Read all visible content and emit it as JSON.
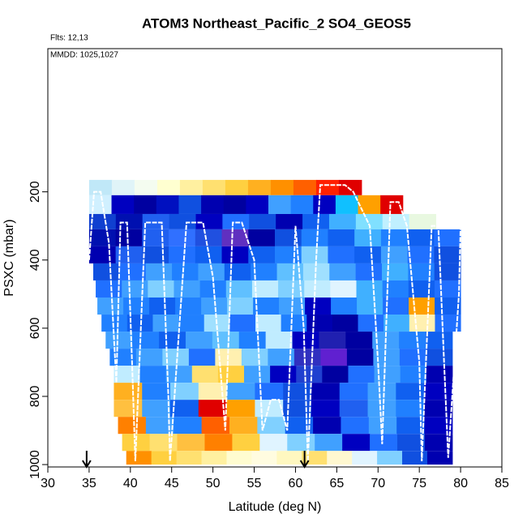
{
  "chart_data": {
    "type": "curtain",
    "title": "ATOM3 Northeast_Pacific_2 SO4_GEOS5",
    "subtitle": "Flts: 12,13",
    "annotation": "MMDD: 1025,1027",
    "x_label": "Latitude (deg N)",
    "y_label": "PSXC (mbar)",
    "xlim": [
      30,
      85
    ],
    "xticks": [
      30,
      35,
      40,
      45,
      50,
      55,
      60,
      65,
      70,
      75,
      80,
      85
    ],
    "ylim": [
      1007,
      -220
    ],
    "yticks": [
      200,
      400,
      600,
      800,
      1000
    ],
    "rows": [
      {
        "p": [
          165,
          210
        ],
        "x": [
          35,
          68
        ],
        "colors": [
          "#c0e8f8",
          "#e0f4f8",
          "#f4fcf0",
          "#ffffd0",
          "#fff0a0",
          "#ffe070",
          "#ffd040",
          "#ffb020",
          "#ff9000",
          "#ff6000",
          "#ff2000",
          "#e00000"
        ]
      },
      {
        "p": [
          210,
          265
        ],
        "x": [
          35,
          73
        ],
        "colors": [
          "#d0f0ff",
          "#0000c0",
          "#0000a0",
          "#0010c0",
          "#1050e0",
          "#0000b0",
          "#0000a0",
          "#0000c0",
          "#40a0ff",
          "#2080ff",
          "#0000c0",
          "#10c0ff",
          "#ffa000",
          "#e00000"
        ]
      },
      {
        "p": [
          265,
          310
        ],
        "x": [
          35,
          77
        ],
        "colors": [
          "#1040d0",
          "#0010b0",
          "#2060f0",
          "#1050e0",
          "#0000c0",
          "#2070ff",
          "#1050e0",
          "#0000b0",
          "#1060f0",
          "#40b0ff",
          "#80e0ff",
          "#c0f0ff",
          "#e8f8e0"
        ]
      },
      {
        "p": [
          310,
          360
        ],
        "x": [
          35,
          80
        ],
        "colors": [
          "#0010b0",
          "#0000a0",
          "#2060f0",
          "#3070ff",
          "#2050e0",
          "#6030c0",
          "#0000a0",
          "#1050e0",
          "#2080ff",
          "#1060f0",
          "#40b0ff",
          "#2080ff",
          "#1060f0",
          "#2070ff"
        ]
      },
      {
        "p": [
          360,
          410
        ],
        "x": [
          35,
          80
        ],
        "colors": [
          "#0000b0",
          "#2060f0",
          "#1050e0",
          "#2070ff",
          "#1060f0",
          "#0000c0",
          "#1060f0",
          "#2080ff",
          "#80d0ff",
          "#2070ff",
          "#1060f0",
          "#40a0ff",
          "#2070ff",
          "#1050e0"
        ]
      },
      {
        "p": [
          410,
          460
        ],
        "x": [
          35.5,
          80
        ],
        "colors": [
          "#1050e0",
          "#2070ff",
          "#40a0ff",
          "#2080ff",
          "#40a0ff",
          "#1060f0",
          "#2080ff",
          "#60c0ff",
          "#a0e0ff",
          "#40a0ff",
          "#2070ff",
          "#40b0ff",
          "#2080ff",
          "#1050e0"
        ]
      },
      {
        "p": [
          460,
          510
        ],
        "x": [
          35.8,
          80
        ],
        "colors": [
          "#2070ff",
          "#40a0ff",
          "#80d0ff",
          "#40a0ff",
          "#2080ff",
          "#60c0ff",
          "#c0ecff",
          "#80d0ff",
          "#c0ecff",
          "#e0f4ff",
          "#40b0ff",
          "#2080ff",
          "#1060f0",
          "#2070ff"
        ]
      },
      {
        "p": [
          510,
          560
        ],
        "x": [
          36,
          80
        ],
        "colors": [
          "#40a0ff",
          "#2080ff",
          "#1060f0",
          "#2080ff",
          "#40a0ff",
          "#80d0ff",
          "#2080ff",
          "#40a0ff",
          "#0000c0",
          "#2080ff",
          "#40b0ff",
          "#2070ff",
          "#ffa000",
          "#1060f0"
        ]
      },
      {
        "p": [
          560,
          610
        ],
        "x": [
          36.5,
          80
        ],
        "colors": [
          "#2080ff",
          "#1060f0",
          "#40a0ff",
          "#2080ff",
          "#a0e0ff",
          "#2070ff",
          "#c0ecff",
          "#2080ff",
          "#0000b0",
          "#0000a0",
          "#2070ff",
          "#40b0ff",
          "#fff0b0",
          "#2070ff"
        ]
      },
      {
        "p": [
          610,
          660
        ],
        "x": [
          37,
          79
        ],
        "colors": [
          "#40a0ff",
          "#2080ff",
          "#1060f0",
          "#40a0ff",
          "#60c0ff",
          "#2080ff",
          "#c0ecff",
          "#0000c0",
          "#2020b0",
          "#0000a0",
          "#40a0ff",
          "#2080ff",
          "#1060f0"
        ]
      },
      {
        "p": [
          660,
          710
        ],
        "x": [
          37.5,
          79
        ],
        "colors": [
          "#2080ff",
          "#40a0ff",
          "#80d0ff",
          "#2070ff",
          "#fff0b0",
          "#80d0ff",
          "#40a0ff",
          "#3030c0",
          "#6020d0",
          "#0000a0",
          "#40a0ff",
          "#2070ff",
          "#1050e0"
        ]
      },
      {
        "p": [
          710,
          760
        ],
        "x": [
          38,
          79
        ],
        "colors": [
          "#c0ecff",
          "#2080ff",
          "#40a0ff",
          "#ffe070",
          "#ffd040",
          "#40a0ff",
          "#0000c0",
          "#2040d0",
          "#0000a0",
          "#2070ff",
          "#40a0ff",
          "#2080ff",
          "#0000b0"
        ]
      },
      {
        "p": [
          760,
          810
        ],
        "x": [
          38,
          79
        ],
        "colors": [
          "#ffb020",
          "#2080ff",
          "#80d0ff",
          "#fff0b0",
          "#40a0ff",
          "#2070ff",
          "#1050e0",
          "#0000b0",
          "#2070ff",
          "#40a0ff",
          "#1060f0",
          "#0000c0"
        ]
      },
      {
        "p": [
          810,
          860
        ],
        "x": [
          38,
          79
        ],
        "colors": [
          "#ffc040",
          "#40a0ff",
          "#1060f0",
          "#e00000",
          "#ffa000",
          "#c0ecff",
          "#1050e0",
          "#0000c0",
          "#2060f0",
          "#40a0ff",
          "#2080ff",
          "#0000b0"
        ]
      },
      {
        "p": [
          860,
          910
        ],
        "x": [
          38.5,
          79
        ],
        "colors": [
          "#ff8000",
          "#40a0ff",
          "#2080ff",
          "#ff6000",
          "#ffb020",
          "#80d0ff",
          "#1060f0",
          "#0000b0",
          "#2070ff",
          "#40a0ff",
          "#1060f0",
          "#0000c0"
        ]
      },
      {
        "p": [
          910,
          960
        ],
        "x": [
          39,
          79
        ],
        "colors": [
          "#ffd040",
          "#ffe070",
          "#ffc040",
          "#ff8000",
          "#ffd040",
          "#e0f4ff",
          "#80d0ff",
          "#40a0ff",
          "#0000c0",
          "#2070ff",
          "#1050e0",
          "#0000b0"
        ]
      },
      {
        "p": [
          960,
          1000
        ],
        "x": [
          39.5,
          79
        ],
        "colors": [
          "#ff9000",
          "#ffd040",
          "#ffe070",
          "#fff0a0",
          "#fffcd0",
          "#fffce0",
          "#fff8c0",
          "#ffe070",
          "#fff8d0",
          "#e0f4ff",
          "#80d0ff",
          "#1050e0",
          "#0000b0"
        ]
      }
    ],
    "track": {
      "color": "#ffffff",
      "x": [
        35,
        35.6,
        36.4,
        37.4,
        38.3,
        38.8,
        39.6,
        40.2,
        40.6,
        41.8,
        43.8,
        44.6,
        44.8,
        46.8,
        48.8,
        50,
        51.5,
        52.4,
        53.5,
        55,
        56,
        57,
        58,
        59,
        60,
        61,
        61.5,
        62.5,
        63,
        66,
        67,
        69,
        70,
        70.5,
        71.5,
        72.5,
        73.5,
        75,
        75.3,
        76.5,
        77.3,
        78,
        78.5,
        79.8,
        80
      ],
      "y": [
        400,
        200,
        200,
        350,
        760,
        290,
        290,
        700,
        990,
        290,
        290,
        800,
        990,
        290,
        290,
        450,
        900,
        290,
        290,
        400,
        900,
        810,
        810,
        900,
        300,
        600,
        990,
        400,
        180,
        180,
        200,
        300,
        700,
        940,
        230,
        230,
        300,
        700,
        990,
        300,
        300,
        700,
        980,
        500,
        300
      ]
    },
    "markers": [
      34.7,
      61.1
    ]
  }
}
